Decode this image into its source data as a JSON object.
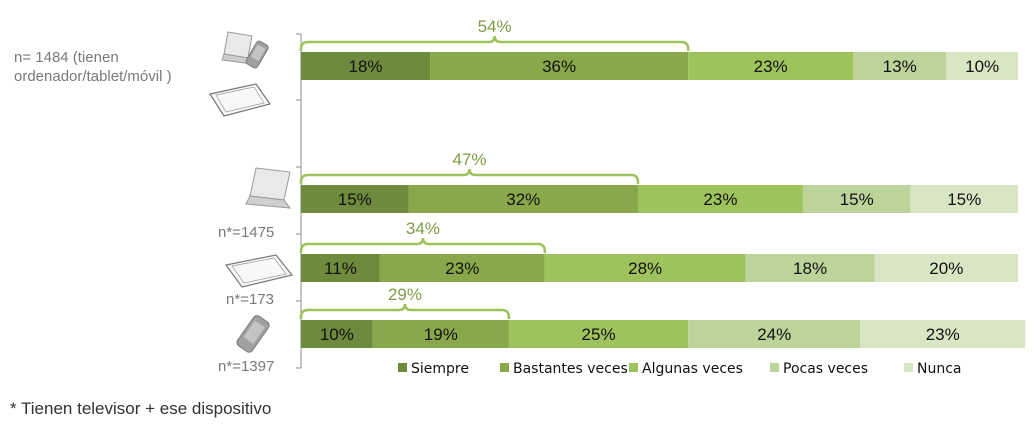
{
  "chart_data": {
    "type": "bar",
    "orientation": "horizontal",
    "stacked": true,
    "xlim": [
      0,
      100
    ],
    "grid": false,
    "legend": {
      "position": "bottom",
      "entries": [
        "Siempre",
        "Bastantes veces",
        "Algunas veces",
        "Pocas veces",
        "Nunca"
      ]
    },
    "colors": [
      "#6e8a3c",
      "#88a84b",
      "#9ec25c",
      "#bcd39a",
      "#d8e6c4"
    ],
    "rows": [
      {
        "label": "n= 1484 (tienen ordenador/tablet/móvil )",
        "icons": [
          "laptop-icon",
          "phone-icon",
          "tablet-icon"
        ],
        "values": [
          18,
          36,
          23,
          13,
          10
        ],
        "value_labels": [
          "18%",
          "36%",
          "23%",
          "13%",
          "10%"
        ],
        "bracket_label": "54%",
        "bracket_value": 54
      },
      {
        "label": "n*=1475",
        "icons": [
          "laptop-icon"
        ],
        "values": [
          15,
          32,
          23,
          15,
          15
        ],
        "value_labels": [
          "15%",
          "32%",
          "23%",
          "15%",
          "15%"
        ],
        "bracket_label": "47%",
        "bracket_value": 47
      },
      {
        "label": "n*=173",
        "icons": [
          "tablet-icon"
        ],
        "values": [
          11,
          23,
          28,
          18,
          20
        ],
        "value_labels": [
          "11%",
          "23%",
          "28%",
          "18%",
          "20%"
        ],
        "bracket_label": "34%",
        "bracket_value": 34
      },
      {
        "label": "n*=1397",
        "icons": [
          "phone-icon"
        ],
        "values": [
          10,
          19,
          25,
          24,
          23
        ],
        "value_labels": [
          "10%",
          "19%",
          "25%",
          "24%",
          "23%"
        ],
        "bracket_label": "29%",
        "bracket_value": 29
      }
    ]
  },
  "footnote": "* Tienen televisor + ese dispositivo"
}
